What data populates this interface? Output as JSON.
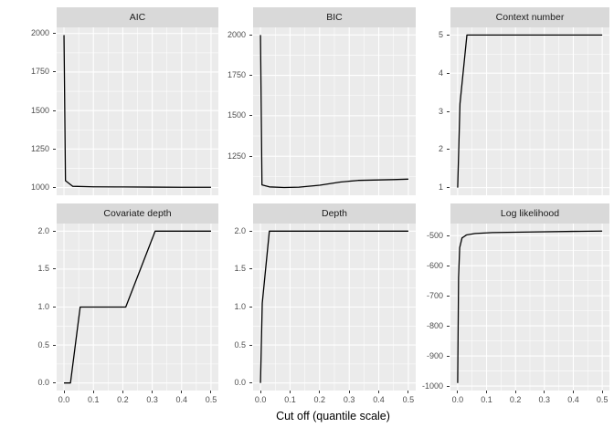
{
  "figure": {
    "kind": "ggplot-faceted-line-chart",
    "background": "#FFFFFF",
    "panel_bg": "#EBEBEB",
    "strip_bg": "#D9D9D9",
    "grid_color": "#FFFFFF",
    "line_color": "#000000",
    "axis_text_color": "#4D4D4D",
    "strip_text_color": "#1A1A1A",
    "tick_color": "#333333"
  },
  "axis": {
    "title": "Cut off (quantile scale)",
    "xlim": [
      -0.025,
      0.525
    ],
    "xticks": [
      0.0,
      0.1,
      0.2,
      0.3,
      0.4,
      0.5
    ],
    "xtick_labels": [
      "0.0",
      "0.1",
      "0.2",
      "0.3",
      "0.4",
      "0.5"
    ],
    "x_minor_step": 0.05,
    "grid": true,
    "legend": "none"
  },
  "chart_data": [
    {
      "type": "line",
      "title": "AIC",
      "points": [
        [
          0,
          1990
        ],
        [
          0.005,
          1045
        ],
        [
          0.03,
          1008
        ],
        [
          0.1,
          1005
        ],
        [
          0.2,
          1004
        ],
        [
          0.3,
          1003
        ],
        [
          0.4,
          1002
        ],
        [
          0.5,
          1002
        ]
      ],
      "ylim": [
        950,
        2040
      ],
      "yticks": [
        1000,
        1250,
        1500,
        1750,
        2000
      ],
      "ytick_labels": [
        "1000",
        "1250",
        "1500",
        "1750",
        "2000"
      ]
    },
    {
      "type": "line",
      "title": "BIC",
      "points": [
        [
          0,
          2000
        ],
        [
          0.005,
          1072
        ],
        [
          0.03,
          1060
        ],
        [
          0.08,
          1056
        ],
        [
          0.13,
          1058
        ],
        [
          0.2,
          1070
        ],
        [
          0.27,
          1090
        ],
        [
          0.33,
          1100
        ],
        [
          0.4,
          1103
        ],
        [
          0.45,
          1105
        ],
        [
          0.5,
          1108
        ]
      ],
      "ylim": [
        1008,
        2047
      ],
      "yticks": [
        1250,
        1500,
        1750,
        2000
      ],
      "ytick_labels": [
        "1250",
        "1500",
        "1750",
        "2000"
      ]
    },
    {
      "type": "line",
      "title": "Context number",
      "points": [
        [
          0,
          1
        ],
        [
          0.008,
          3.2
        ],
        [
          0.032,
          5
        ],
        [
          0.5,
          5
        ]
      ],
      "ylim": [
        0.8,
        5.2
      ],
      "yticks": [
        1,
        2,
        3,
        4,
        5
      ],
      "ytick_labels": [
        "1",
        "2",
        "3",
        "4",
        "5"
      ]
    },
    {
      "type": "line",
      "title": "Covariate depth",
      "points": [
        [
          0,
          0
        ],
        [
          0.022,
          0
        ],
        [
          0.055,
          1
        ],
        [
          0.21,
          1
        ],
        [
          0.31,
          2
        ],
        [
          0.5,
          2
        ]
      ],
      "ylim": [
        -0.1,
        2.1
      ],
      "yticks": [
        0,
        0.5,
        1,
        1.5,
        2
      ],
      "ytick_labels": [
        "0.0",
        "0.5",
        "1.0",
        "1.5",
        "2.0"
      ]
    },
    {
      "type": "line",
      "title": "Depth",
      "points": [
        [
          0,
          0
        ],
        [
          0.006,
          1.05
        ],
        [
          0.03,
          2
        ],
        [
          0.5,
          2
        ]
      ],
      "ylim": [
        -0.1,
        2.1
      ],
      "yticks": [
        0,
        0.5,
        1,
        1.5,
        2
      ],
      "ytick_labels": [
        "0.0",
        "0.5",
        "1.0",
        "1.5",
        "2.0"
      ]
    },
    {
      "type": "line",
      "title": "Log likelihood",
      "points": [
        [
          0,
          -990
        ],
        [
          0.003,
          -640
        ],
        [
          0.007,
          -540
        ],
        [
          0.015,
          -508
        ],
        [
          0.03,
          -498
        ],
        [
          0.06,
          -493
        ],
        [
          0.12,
          -490
        ],
        [
          0.25,
          -488
        ],
        [
          0.4,
          -486
        ],
        [
          0.5,
          -485
        ]
      ],
      "ylim": [
        -1015,
        -460
      ],
      "yticks": [
        -1000,
        -900,
        -800,
        -700,
        -600,
        -500
      ],
      "ytick_labels": [
        "-1000",
        "-900",
        "-800",
        "-700",
        "-600",
        "-500"
      ]
    }
  ]
}
